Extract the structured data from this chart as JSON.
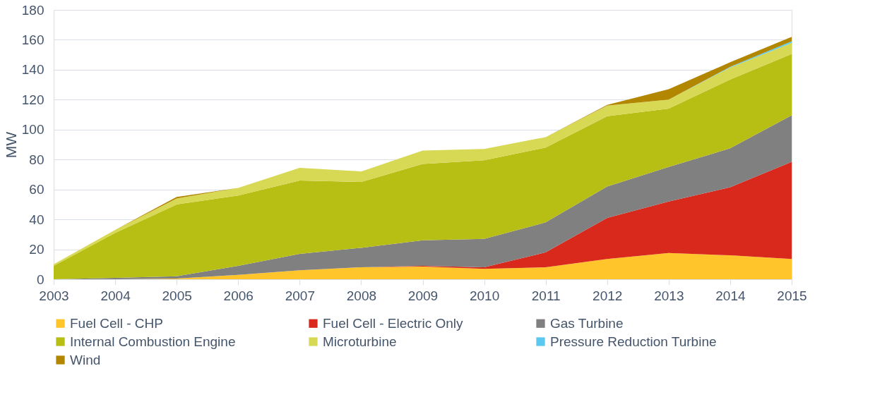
{
  "chart_data": {
    "type": "area",
    "ylabel": "MW",
    "stacked": true,
    "x": [
      2003,
      2004,
      2005,
      2006,
      2007,
      2008,
      2009,
      2010,
      2011,
      2012,
      2013,
      2014,
      2015
    ],
    "xlim": [
      2003,
      2015
    ],
    "xticks": [
      2003,
      2004,
      2005,
      2006,
      2007,
      2008,
      2009,
      2010,
      2011,
      2012,
      2013,
      2014,
      2015
    ],
    "ylim": [
      0,
      180
    ],
    "yticks": [
      0,
      20,
      40,
      60,
      80,
      100,
      120,
      140,
      160,
      180
    ],
    "grid": "y",
    "legend": "bottom",
    "series": [
      {
        "name": "Fuel Cell - CHP",
        "color": "#ffc52b",
        "values": [
          0,
          0,
          0.5,
          3,
          6,
          8,
          8.5,
          7,
          8,
          13.5,
          17.5,
          16,
          13.5
        ]
      },
      {
        "name": "Fuel Cell - Electric Only",
        "color": "#d9291c",
        "values": [
          0,
          0,
          0,
          0,
          0,
          0,
          0.5,
          1,
          10,
          27.5,
          34.5,
          45.5,
          65
        ]
      },
      {
        "name": "Gas Turbine",
        "color": "#808080",
        "values": [
          0,
          1,
          1.5,
          6,
          11,
          13,
          17,
          19,
          20,
          21,
          23,
          26,
          31
        ]
      },
      {
        "name": "Internal Combustion Engine",
        "color": "#b7bf14",
        "values": [
          9,
          30,
          48,
          47,
          49,
          44,
          51,
          52.5,
          50,
          47,
          39,
          46,
          41
        ]
      },
      {
        "name": "Microturbine",
        "color": "#d7d955",
        "values": [
          1,
          2,
          4,
          5,
          8.5,
          7,
          9,
          7.5,
          7,
          7,
          6,
          8,
          7.5
        ]
      },
      {
        "name": "Pressure Reduction Turbine",
        "color": "#5bc8f0",
        "values": [
          0,
          0,
          0,
          0,
          0,
          0,
          0,
          0,
          0,
          0,
          0,
          0.5,
          1
        ]
      },
      {
        "name": "Wind",
        "color": "#b38600",
        "values": [
          0,
          0,
          1,
          0,
          0,
          0,
          0,
          0,
          0,
          0.5,
          7,
          3,
          3
        ]
      }
    ]
  }
}
